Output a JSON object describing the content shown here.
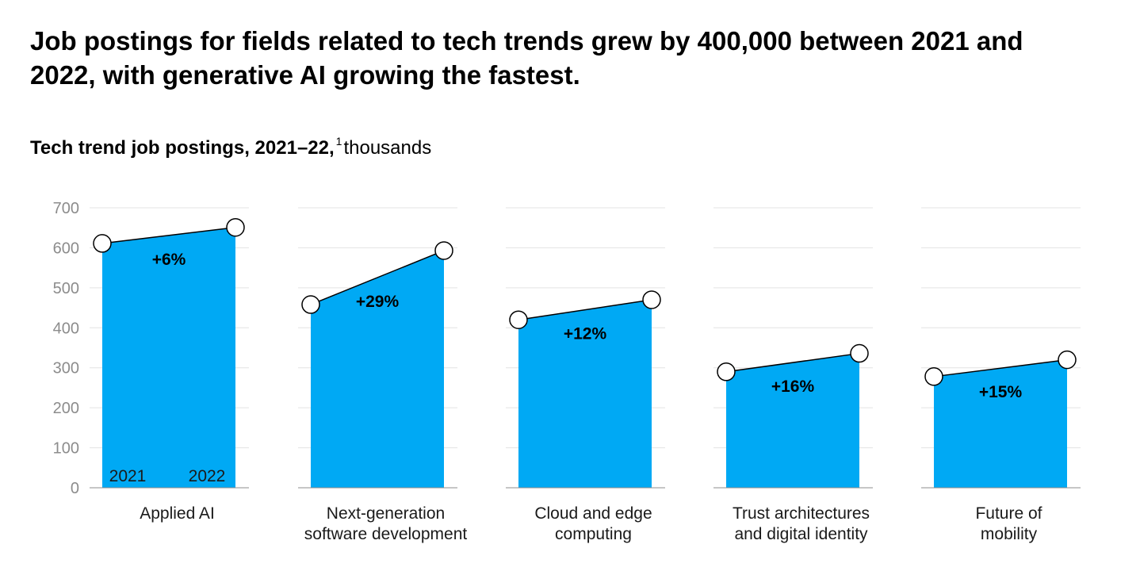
{
  "headline": "Job postings for fields related to tech trends grew by 400,000 between 2021 and 2022, with generative AI growing the fastest.",
  "subtitle": {
    "main": "Tech trend job postings, 2021–22,",
    "footnote_mark": "1",
    "unit": "thousands"
  },
  "chart_data": {
    "type": "area",
    "ylim": [
      0,
      700
    ],
    "yticks": [
      "0",
      "100",
      "200",
      "300",
      "400",
      "500",
      "600",
      "700"
    ],
    "x": [
      "2021",
      "2022"
    ],
    "grid": true,
    "colors": {
      "fill": "#00a9f4",
      "line": "#000000",
      "grid": "#e3e3e3",
      "axis": "#8c8c8c",
      "tick_text": "#8c8c8c"
    },
    "panels": [
      {
        "category": [
          "Applied AI"
        ],
        "values": [
          611,
          651
        ],
        "change": "+6%"
      },
      {
        "category": [
          "Next-generation",
          "software development"
        ],
        "values": [
          458,
          593
        ],
        "change": "+29%"
      },
      {
        "category": [
          "Cloud and edge",
          "computing"
        ],
        "values": [
          420,
          470
        ],
        "change": "+12%"
      },
      {
        "category": [
          "Trust architectures",
          "and digital identity"
        ],
        "values": [
          290,
          336
        ],
        "change": "+16%"
      },
      {
        "category": [
          "Future of",
          "mobility"
        ],
        "values": [
          278,
          320
        ],
        "change": "+15%"
      }
    ]
  }
}
